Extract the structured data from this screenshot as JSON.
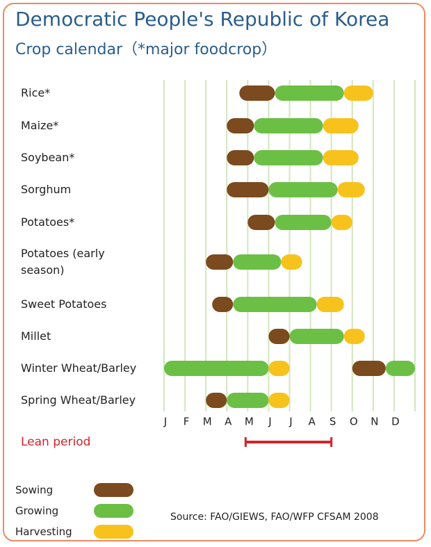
{
  "chart_data": {
    "type": "crop-calendar",
    "title": "Democratic People's Republic of Korea",
    "subtitle": "Crop calendar（*major foodcrop）",
    "months": [
      "J",
      "F",
      "M",
      "A",
      "M",
      "J",
      "J",
      "A",
      "S",
      "O",
      "N",
      "D"
    ],
    "xlim": [
      0,
      12
    ],
    "xticks": [
      0,
      1,
      2,
      3,
      4,
      5,
      6,
      7,
      8,
      9,
      10,
      11,
      12
    ],
    "legend": {
      "sowing": {
        "label": "Sowing",
        "color": "#7b4a1e"
      },
      "growing": {
        "label": "Growing",
        "color": "#6cbf45"
      },
      "harvesting": {
        "label": "Harvesting",
        "color": "#f7c21b"
      }
    },
    "crops": [
      {
        "name": "Rice*",
        "sowing": [
          [
            3.6,
            5.3
          ]
        ],
        "growing": [
          [
            5.3,
            8.6
          ]
        ],
        "harvesting": [
          [
            8.6,
            10.0
          ]
        ]
      },
      {
        "name": "Maize*",
        "sowing": [
          [
            3.0,
            4.3
          ]
        ],
        "growing": [
          [
            4.3,
            7.6
          ]
        ],
        "harvesting": [
          [
            7.6,
            9.3
          ]
        ]
      },
      {
        "name": "Soybean*",
        "sowing": [
          [
            3.0,
            4.3
          ]
        ],
        "growing": [
          [
            4.3,
            7.6
          ]
        ],
        "harvesting": [
          [
            7.6,
            9.3
          ]
        ]
      },
      {
        "name": "Sorghum",
        "sowing": [
          [
            3.0,
            5.0
          ]
        ],
        "growing": [
          [
            5.0,
            8.3
          ]
        ],
        "harvesting": [
          [
            8.3,
            9.6
          ]
        ]
      },
      {
        "name": "Potatoes*",
        "sowing": [
          [
            4.0,
            5.3
          ]
        ],
        "growing": [
          [
            5.3,
            8.0
          ]
        ],
        "harvesting": [
          [
            8.0,
            9.0
          ]
        ]
      },
      {
        "name": "Potatoes (early season)",
        "sowing": [
          [
            2.0,
            3.3
          ]
        ],
        "growing": [
          [
            3.3,
            5.6
          ]
        ],
        "harvesting": [
          [
            5.6,
            6.6
          ]
        ]
      },
      {
        "name": "Sweet Potatoes",
        "sowing": [
          [
            2.3,
            3.3
          ]
        ],
        "growing": [
          [
            3.3,
            7.3
          ]
        ],
        "harvesting": [
          [
            7.3,
            8.6
          ]
        ]
      },
      {
        "name": "Millet",
        "sowing": [
          [
            5.0,
            6.0
          ]
        ],
        "growing": [
          [
            6.0,
            8.6
          ]
        ],
        "harvesting": [
          [
            8.6,
            9.6
          ]
        ]
      },
      {
        "name": "Winter Wheat/Barley",
        "sowing": [
          [
            9.0,
            10.6
          ]
        ],
        "growing": [
          [
            0.0,
            5.0
          ],
          [
            10.6,
            12.0
          ]
        ],
        "harvesting": [
          [
            5.0,
            6.0
          ]
        ]
      },
      {
        "name": "Spring Wheat/Barley",
        "sowing": [
          [
            2.0,
            3.0
          ]
        ],
        "growing": [
          [
            3.0,
            5.0
          ]
        ],
        "harvesting": [
          [
            5.0,
            6.0
          ]
        ]
      }
    ],
    "lean_period": {
      "label": "Lean period",
      "color": "#d2232a",
      "range": [
        3.9,
        8.0
      ]
    },
    "source": "Source: FAO/GIEWS, FAO/WFP CFSAM 2008"
  }
}
